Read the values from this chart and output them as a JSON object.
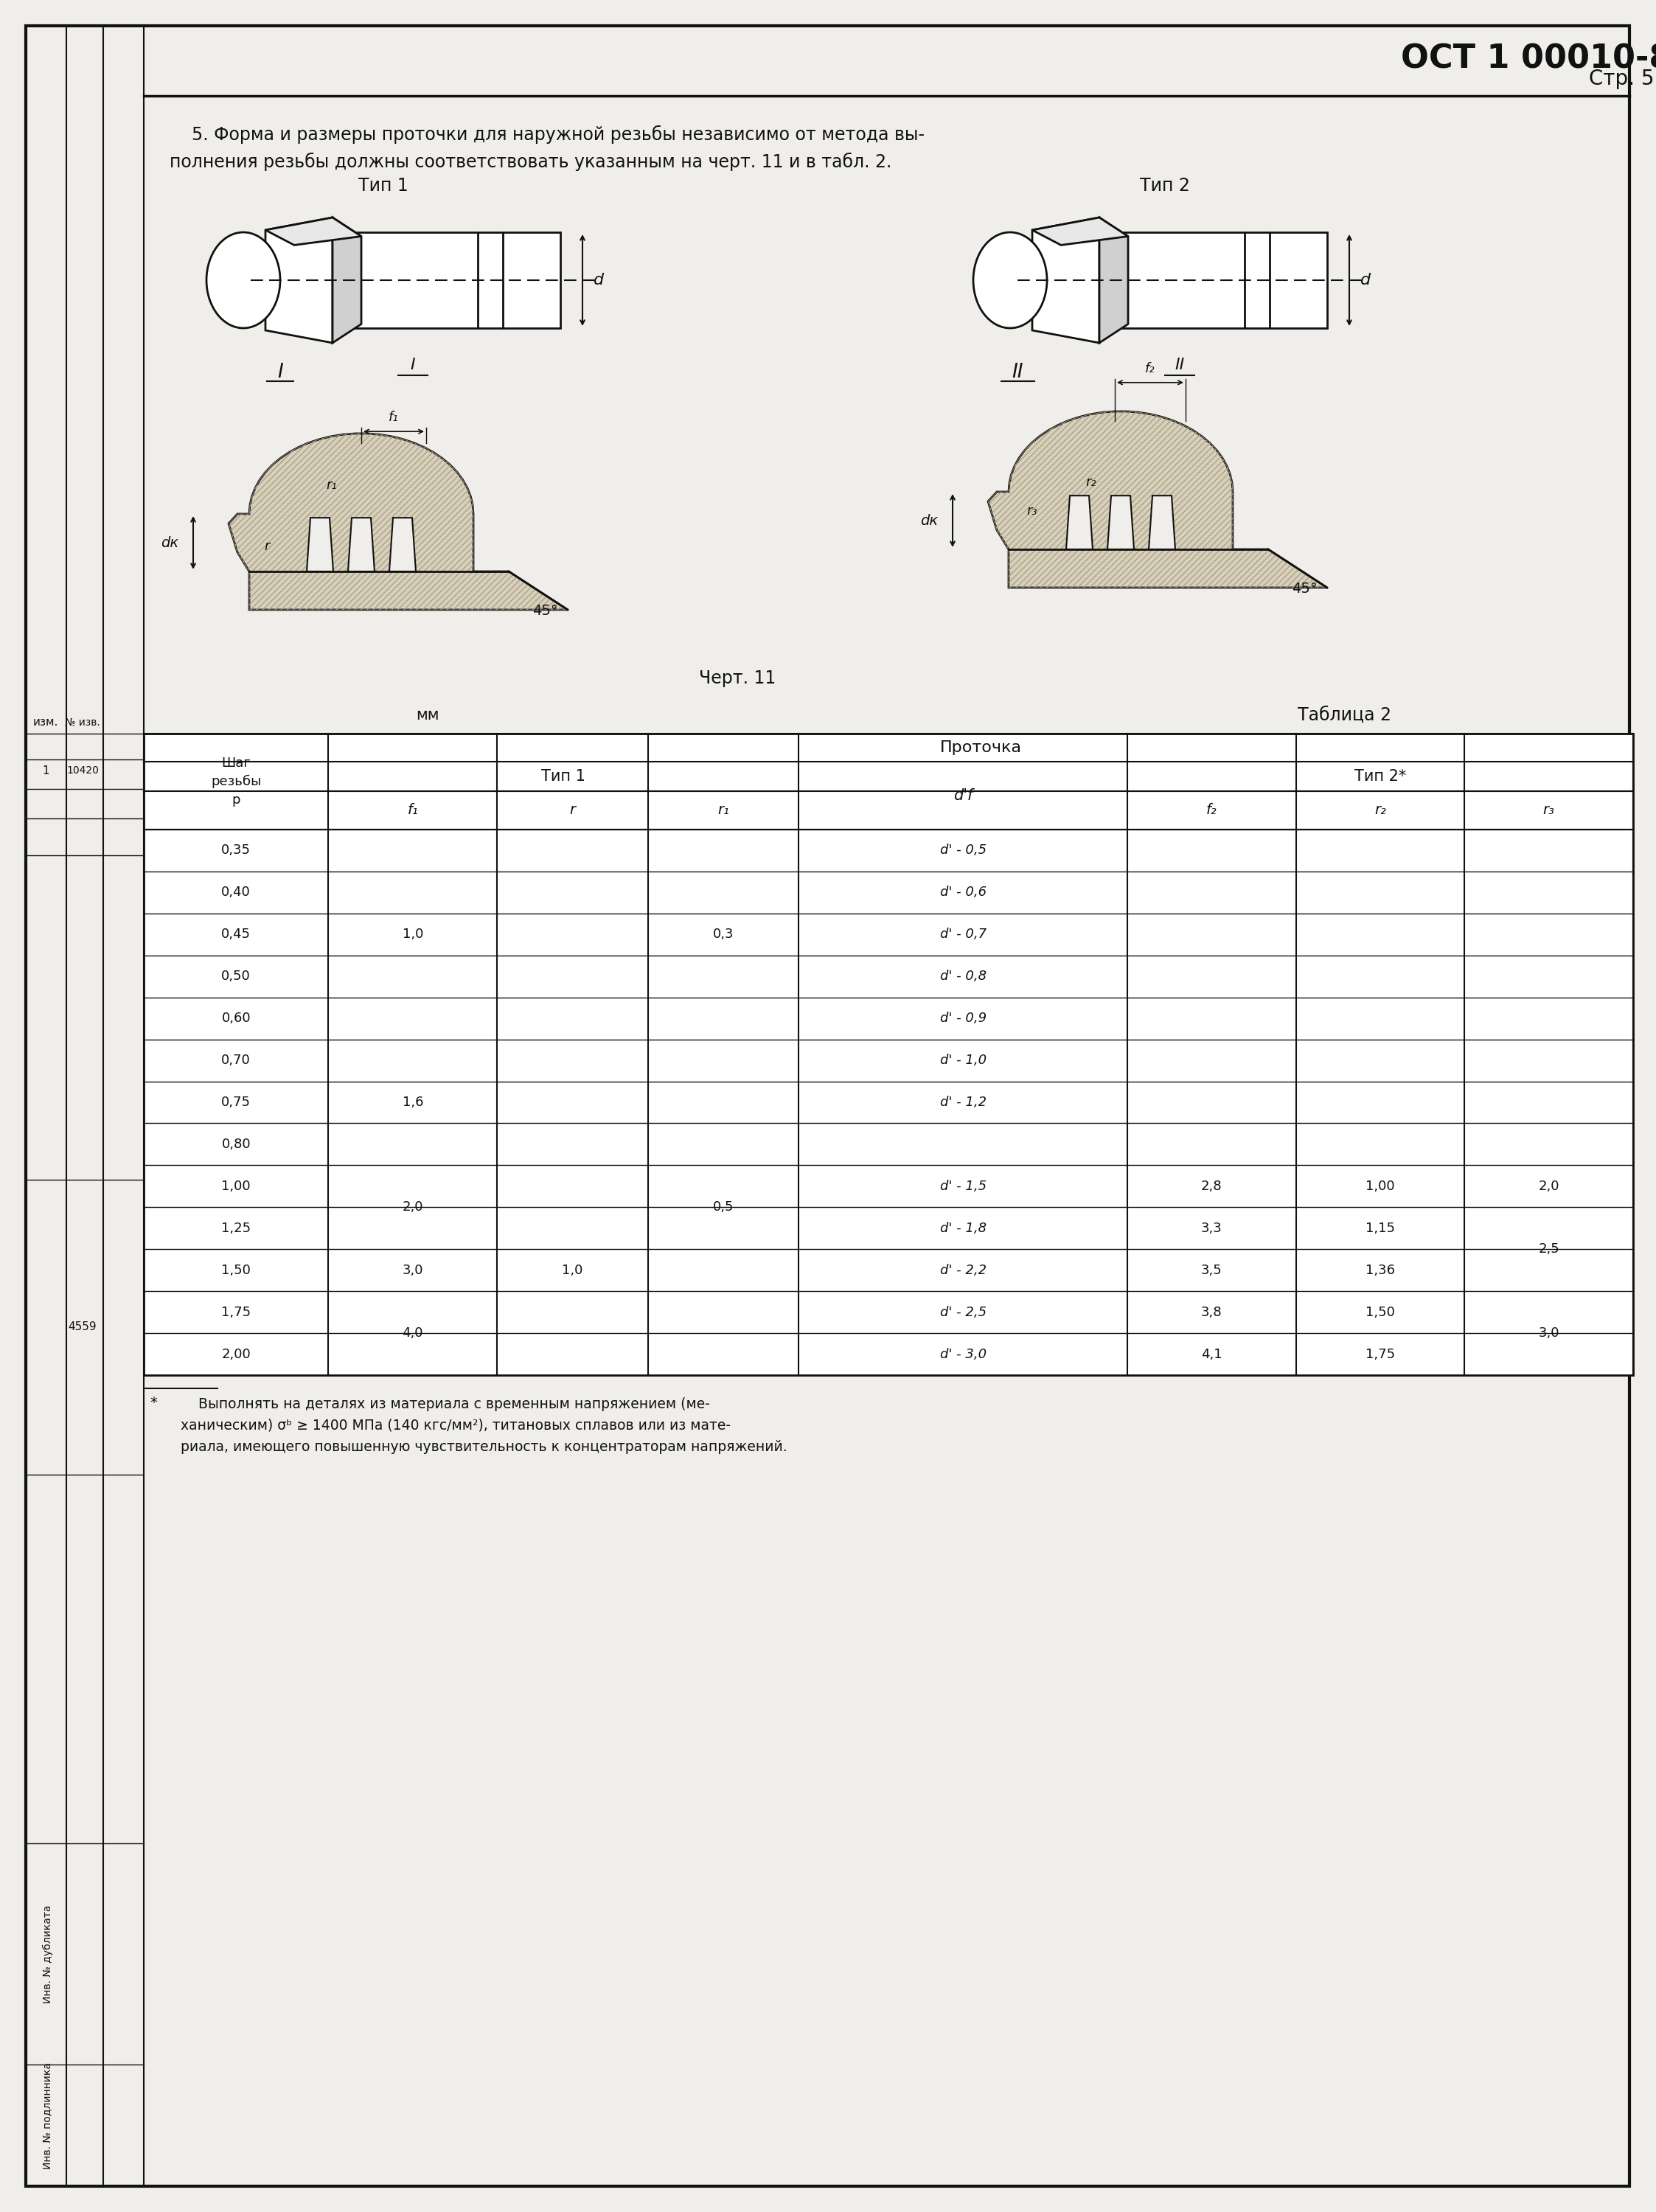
{
  "bg_color": "#f0eeea",
  "text_color": "#111111",
  "paragraph_text1": "    5. Форма и размеры проточки для наружной резьбы независимо от метода вы-",
  "paragraph_text2": "полнения резьбы должны соответствовать указанным на черт. 11 и в табл. 2.",
  "type1_label": "Тип 1",
  "type2_label": "Тип 2",
  "chart_label": "Черт. 11",
  "mm_label": "мм",
  "table_label": "Таблица 2",
  "group_header1": "Тип 1",
  "group_header2": "Тип 2*",
  "prokotchka_header": "Проточка",
  "rows": [
    [
      "0,35",
      "",
      "",
      "",
      "d' - 0,5",
      "",
      "",
      ""
    ],
    [
      "0,40",
      "",
      "",
      "",
      "d' - 0,6",
      "",
      "",
      ""
    ],
    [
      "0,45",
      "1,0",
      "",
      "0,3",
      "d' - 0,7",
      "",
      "",
      ""
    ],
    [
      "0,50",
      "",
      "",
      "",
      "d' - 0,8",
      "-",
      "-",
      "-"
    ],
    [
      "0,60",
      "",
      "",
      "",
      "d' - 0,9",
      "",
      "",
      ""
    ],
    [
      "0,70",
      "",
      "",
      "",
      "d' - 1,0",
      "",
      "",
      ""
    ],
    [
      "0,75",
      "1,6",
      "",
      "",
      "d' - 1,2",
      "",
      "",
      ""
    ],
    [
      "0,80",
      "",
      "",
      "0,5",
      "",
      "",
      "",
      ""
    ],
    [
      "1,00",
      "2,0",
      "",
      "",
      "d' - 1,5",
      "2,8",
      "1,00",
      "2,0"
    ],
    [
      "1,25",
      "",
      "",
      "",
      "d' - 1,8",
      "3,3",
      "1,15",
      ""
    ],
    [
      "1,50",
      "3,0",
      "",
      "",
      "d' - 2,2",
      "3,5",
      "1,36",
      "2,5"
    ],
    [
      "1,75",
      "4,0",
      "1,0",
      "0,5",
      "d' - 2,5",
      "3,8",
      "1,50",
      ""
    ],
    [
      "2,00",
      "",
      "",
      "",
      "d' - 3,0",
      "4,1",
      "1,75",
      "3,0"
    ]
  ],
  "footnote_text": "    Выполнять на деталях из материала с временным напряжением (ме-\nханическим) σᵇ ≥ 1400 МПа (140 кгс/мм²), титановых сплавов или из мате-\nриала, имеющего повышенную чувствительность к концентраторам напряжений."
}
